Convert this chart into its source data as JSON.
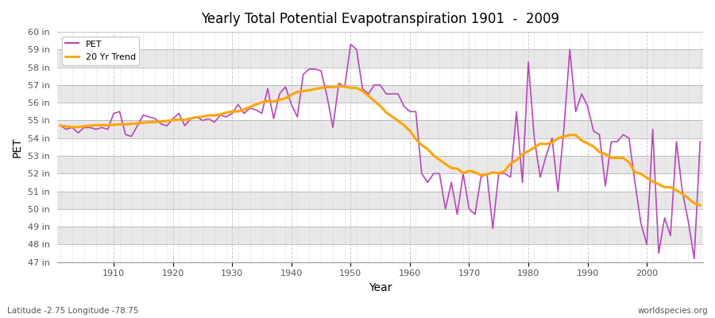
{
  "title": "Yearly Total Potential Evapotranspiration 1901  -  2009",
  "xlabel": "Year",
  "ylabel": "PET",
  "years": [
    1901,
    1902,
    1903,
    1904,
    1905,
    1906,
    1907,
    1908,
    1909,
    1910,
    1911,
    1912,
    1913,
    1914,
    1915,
    1916,
    1917,
    1918,
    1919,
    1920,
    1921,
    1922,
    1923,
    1924,
    1925,
    1926,
    1927,
    1928,
    1929,
    1930,
    1931,
    1932,
    1933,
    1934,
    1935,
    1936,
    1937,
    1938,
    1939,
    1940,
    1941,
    1942,
    1943,
    1944,
    1945,
    1946,
    1947,
    1948,
    1949,
    1950,
    1951,
    1952,
    1953,
    1954,
    1955,
    1956,
    1957,
    1958,
    1959,
    1960,
    1961,
    1962,
    1963,
    1964,
    1965,
    1966,
    1967,
    1968,
    1969,
    1970,
    1971,
    1972,
    1973,
    1974,
    1975,
    1976,
    1977,
    1978,
    1979,
    1980,
    1981,
    1982,
    1983,
    1984,
    1985,
    1986,
    1987,
    1988,
    1989,
    1990,
    1991,
    1992,
    1993,
    1994,
    1995,
    1996,
    1997,
    1998,
    1999,
    2000,
    2001,
    2002,
    2003,
    2004,
    2005,
    2006,
    2007,
    2008,
    2009
  ],
  "pet": [
    54.7,
    54.5,
    54.6,
    54.3,
    54.6,
    54.6,
    54.5,
    54.6,
    54.5,
    55.4,
    55.5,
    54.2,
    54.1,
    54.7,
    55.3,
    55.2,
    55.1,
    54.8,
    54.7,
    55.1,
    55.4,
    54.7,
    55.1,
    55.2,
    55.0,
    55.1,
    54.9,
    55.3,
    55.2,
    55.4,
    55.9,
    55.4,
    55.7,
    55.6,
    55.4,
    56.8,
    55.1,
    56.5,
    56.9,
    55.9,
    55.2,
    57.6,
    57.9,
    57.9,
    57.8,
    56.4,
    54.6,
    57.1,
    56.9,
    59.3,
    59.0,
    56.8,
    56.5,
    57.0,
    57.0,
    56.5,
    56.5,
    56.5,
    55.8,
    55.5,
    55.5,
    52.0,
    51.5,
    52.0,
    52.0,
    50.0,
    51.5,
    49.7,
    52.0,
    50.0,
    49.7,
    51.8,
    52.0,
    48.9,
    52.0,
    52.0,
    51.8,
    55.5,
    51.5,
    58.3,
    54.0,
    51.8,
    53.0,
    54.0,
    51.0,
    54.5,
    59.0,
    55.5,
    56.5,
    55.8,
    54.4,
    54.2,
    51.3,
    53.8,
    53.8,
    54.2,
    54.0,
    51.5,
    49.2,
    48.0,
    54.5,
    47.5,
    49.5,
    48.5,
    53.8,
    51.0,
    49.3,
    47.2,
    53.8
  ],
  "pet_color": "#BB44BB",
  "trend_color": "#FFA500",
  "ylim": [
    47,
    60
  ],
  "yticks": [
    47,
    48,
    49,
    50,
    51,
    52,
    53,
    54,
    55,
    56,
    57,
    58,
    59,
    60
  ],
  "ytick_labels": [
    "47 in",
    "48 in",
    "49 in",
    "50 in",
    "51 in",
    "52 in",
    "53 in",
    "54 in",
    "55 in",
    "56 in",
    "57 in",
    "58 in",
    "59 in",
    "60 in"
  ],
  "xticks": [
    1910,
    1920,
    1930,
    1940,
    1950,
    1960,
    1970,
    1980,
    1990,
    2000
  ],
  "plot_bg_color": "#F0F0F0",
  "fig_bg_color": "#FFFFFF",
  "band_color_light": "#FFFFFF",
  "band_color_dark": "#E8E8E8",
  "grid_color": "#CCCCCC",
  "footer_left": "Latitude -2.75 Longitude -78.75",
  "footer_right": "worldspecies.org",
  "legend_pet": "PET",
  "legend_trend": "20 Yr Trend",
  "trend_window": 20
}
